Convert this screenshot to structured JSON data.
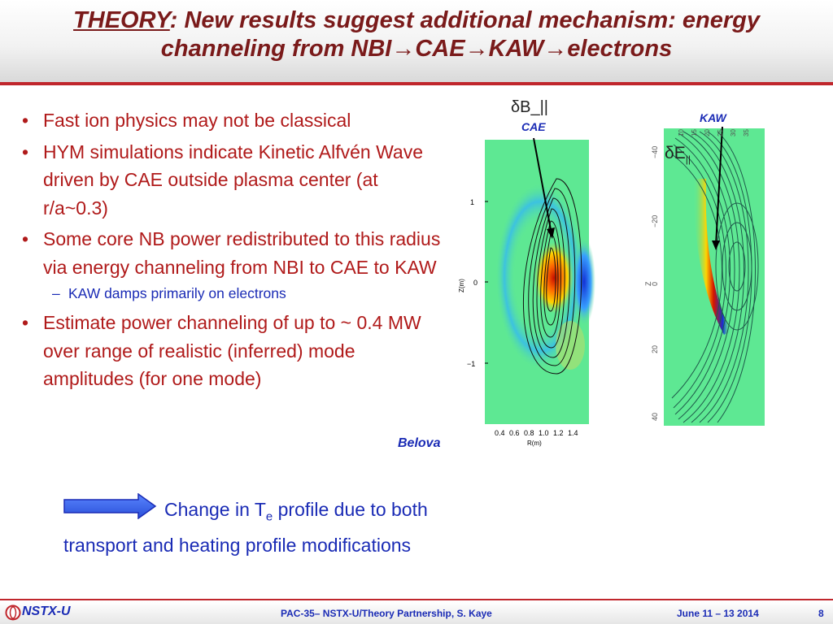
{
  "title": {
    "lead": "THEORY",
    "rest": ": New results suggest additional mechanism: energy",
    "line2": "channeling from NBI→CAE→KAW→electrons"
  },
  "bullets": [
    {
      "text": "Fast ion physics may not be classical",
      "level": 1
    },
    {
      "text": "HYM simulations indicate Kinetic Alfvén Wave driven by CAE outside plasma center (at r/a~0.3)",
      "level": 1
    },
    {
      "text": "Some core NB power redistributed to this radius via energy channeling from NBI to CAE to KAW",
      "level": 1
    },
    {
      "text": "KAW damps primarily on electrons",
      "level": 2
    },
    {
      "text": "Estimate power channeling of up to ~ 0.4 MW over range of realistic (inferred) mode amplitudes (for one mode)",
      "level": 1
    }
  ],
  "figures": {
    "cae": {
      "label": "CAE",
      "quantity": "δB_||",
      "ylabel": "Z(m)",
      "xlabel": "R(m)",
      "yticks": [
        "1",
        "0",
        "−1"
      ],
      "xticks": [
        "0.4",
        "0.6",
        "0.8",
        "1.0",
        "1.2",
        "1.4"
      ]
    },
    "kaw": {
      "label": "KAW",
      "quantity": "δE",
      "quantity_sub": "||",
      "zlabel": "Z",
      "side_ticks": [
        "−40",
        "−20",
        "0",
        "20",
        "40"
      ],
      "top_ticks": [
        "10",
        "15",
        "20",
        "25",
        "30",
        "35"
      ]
    },
    "credit": "Belova"
  },
  "conclusion": {
    "pre": "Change in T",
    "sub": "e",
    "post": " profile due to both transport and heating profile modifications"
  },
  "footer": {
    "brand": "NSTX-U",
    "center": "PAC-35– NSTX-U/Theory Partnership, S. Kaye",
    "date": "June 11 – 13 2014",
    "page": "8"
  },
  "colors": {
    "title": "#7a1a1a",
    "bullet": "#b01a1a",
    "accent": "#1a2bb5",
    "rule": "#c0262c",
    "field_bg": "#5ee893"
  }
}
